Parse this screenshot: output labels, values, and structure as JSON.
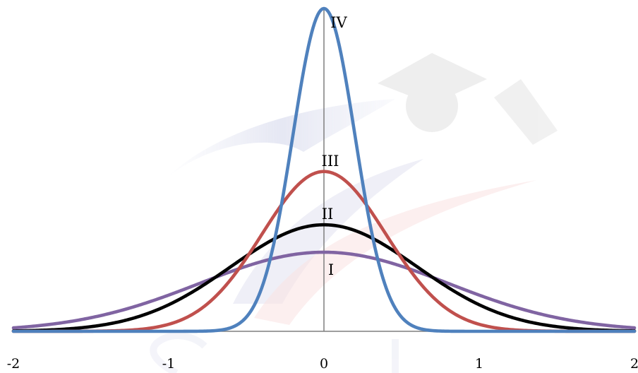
{
  "chart_data": {
    "type": "line",
    "title": "",
    "xlabel": "",
    "ylabel": "",
    "xlim": [
      -2,
      2
    ],
    "ylim": [
      0,
      1
    ],
    "grid": false,
    "legend": "none",
    "x_ticks": [
      {
        "value": -2,
        "label": "-2"
      },
      {
        "value": -1,
        "label": "-1"
      },
      {
        "value": 0,
        "label": "0"
      },
      {
        "value": 1,
        "label": "1"
      },
      {
        "value": 2,
        "label": "2"
      }
    ],
    "axis_color": "#7f7f7f",
    "series": [
      {
        "name": "I",
        "color": "#8064a2",
        "peak": 0.245,
        "sigma": 0.8,
        "x": [
          -2,
          -1.5,
          -1,
          -0.5,
          0,
          0.5,
          1,
          1.5,
          2
        ],
        "y": [
          0.011,
          0.051,
          0.112,
          0.201,
          0.245,
          0.201,
          0.112,
          0.051,
          0.011
        ]
      },
      {
        "name": "II",
        "color": "#000000",
        "peak": 0.33,
        "sigma": 0.6,
        "x": [
          -2,
          -1.5,
          -1,
          -0.5,
          0,
          0.5,
          1,
          1.5,
          2
        ],
        "y": [
          0.006,
          0.028,
          0.115,
          0.235,
          0.33,
          0.235,
          0.115,
          0.028,
          0.006
        ]
      },
      {
        "name": "III",
        "color": "#c0504d",
        "peak": 0.495,
        "sigma": 0.4,
        "x": [
          -2,
          -1.5,
          -1,
          -0.5,
          0,
          0.5,
          1,
          1.5,
          2
        ],
        "y": [
          0.0,
          0.001,
          0.022,
          0.227,
          0.495,
          0.227,
          0.022,
          0.001,
          0.0
        ]
      },
      {
        "name": "IV",
        "color": "#4f81bd",
        "peak": 1.0,
        "sigma": 0.2,
        "x": [
          -2,
          -1.5,
          -1,
          -0.5,
          -0.25,
          0,
          0.25,
          0.5,
          1,
          1.5,
          2
        ],
        "y": [
          0.0,
          0.0,
          0.0,
          0.044,
          0.458,
          1.0,
          0.458,
          0.044,
          0.0,
          0.0,
          0.0
        ]
      }
    ]
  }
}
